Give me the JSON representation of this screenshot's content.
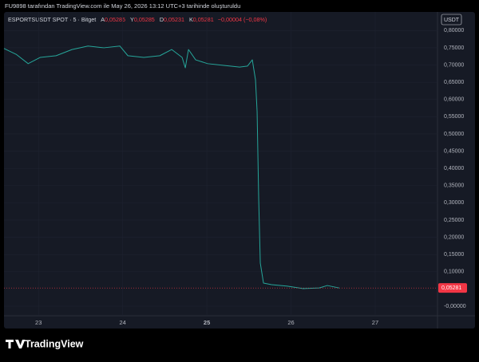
{
  "header": "FU9898 tarafından TradingView.com ile May 26, 2026 13:12 UTC+3 tarihinde oluşturuldu",
  "footer": {
    "brand": "TradingView"
  },
  "chart_data": {
    "type": "line",
    "legend": {
      "symbol": "ESPORTSUSDT SPOT · 5 · Bitget",
      "items": [
        {
          "key": "A",
          "value": "0,05285"
        },
        {
          "key": "Y",
          "value": "0,05285"
        },
        {
          "key": "D",
          "value": "0,05231"
        },
        {
          "key": "K",
          "value": "0,05281"
        }
      ],
      "change": "−0,00004 (−0,08%)"
    },
    "currency": "USDT",
    "x": [
      22.59,
      22.735,
      22.877,
      23.019,
      23.209,
      23.398,
      23.588,
      23.777,
      23.967,
      24.062,
      24.251,
      24.441,
      24.583,
      24.706,
      24.744,
      24.782,
      24.867,
      25.009,
      25.199,
      25.389,
      25.483,
      25.54,
      25.578,
      25.597,
      25.616,
      25.635,
      25.673,
      25.768,
      25.957,
      26.147,
      26.336,
      26.431,
      26.573
    ],
    "series": [
      {
        "name": "ESPORTSUSDT",
        "color": "#26a69a",
        "values": [
          0.748,
          0.731,
          0.704,
          0.722,
          0.727,
          0.745,
          0.755,
          0.75,
          0.755,
          0.727,
          0.722,
          0.727,
          0.745,
          0.722,
          0.692,
          0.745,
          0.715,
          0.704,
          0.699,
          0.694,
          0.697,
          0.715,
          0.657,
          0.565,
          0.31,
          0.125,
          0.067,
          0.0625,
          0.058,
          0.051,
          0.053,
          0.06,
          0.0528
        ]
      }
    ],
    "xlim": [
      22.59,
      27.74
    ],
    "xticks": [
      23,
      24,
      25,
      26,
      27
    ],
    "ylim": [
      -0.0278,
      0.854
    ],
    "yticks": [
      {
        "value": 0,
        "label": "-0,00000"
      },
      {
        "value": 0.1,
        "label": "0,10000"
      },
      {
        "value": 0.15,
        "label": "0,15000"
      },
      {
        "value": 0.2,
        "label": "0,20000"
      },
      {
        "value": 0.25,
        "label": "0,25000"
      },
      {
        "value": 0.3,
        "label": "0,30000"
      },
      {
        "value": 0.35,
        "label": "0,35000"
      },
      {
        "value": 0.4,
        "label": "0,40000"
      },
      {
        "value": 0.45,
        "label": "0,45000"
      },
      {
        "value": 0.5,
        "label": "0,50000"
      },
      {
        "value": 0.55,
        "label": "0,55000"
      },
      {
        "value": 0.6,
        "label": "0,60000"
      },
      {
        "value": 0.65,
        "label": "0,65000"
      },
      {
        "value": 0.7,
        "label": "0,70000"
      },
      {
        "value": 0.75,
        "label": "0,75000"
      },
      {
        "value": 0.8,
        "label": "0,80000"
      }
    ],
    "last_price": {
      "value": 0.05281,
      "label": "0,05281",
      "color": "#f23645"
    },
    "grid": true
  }
}
